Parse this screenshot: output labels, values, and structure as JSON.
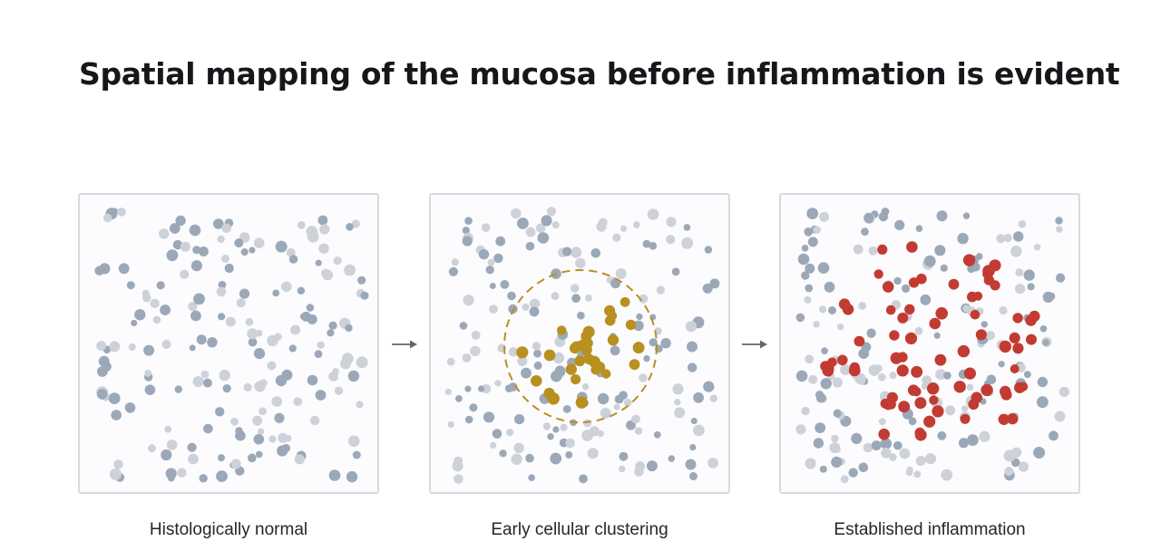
{
  "title": "Spatial mapping of the mucosa before inflammation is evident",
  "panels": [
    {
      "caption": "Histologically normal"
    },
    {
      "caption": "Early cellular clustering"
    },
    {
      "caption": "Established inflammation"
    }
  ],
  "colors": {
    "normal_cell_dark": "#9ba8b7",
    "normal_cell_light": "#cdd2d9",
    "clustering_cell": "#b8901f",
    "inflamed_cell": "#c23b32",
    "cluster_ring": "#b8901f",
    "panel_border": "#d9d9de",
    "arrow": "#666666"
  },
  "icons": {
    "arrow": "right-arrow-icon"
  }
}
